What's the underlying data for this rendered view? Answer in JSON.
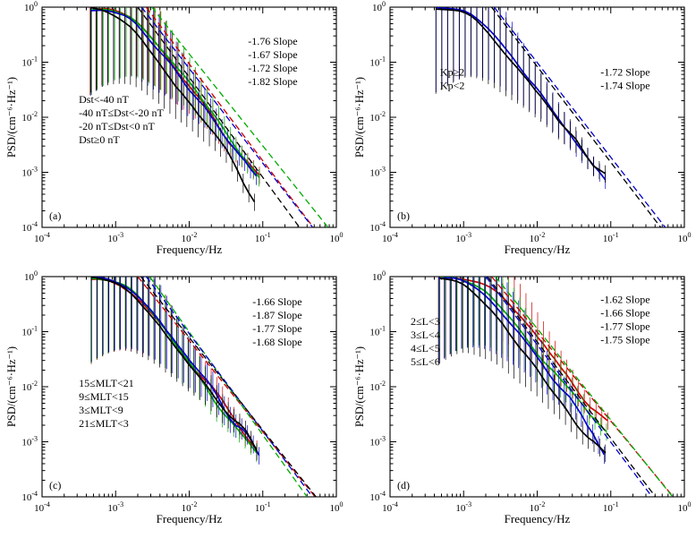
{
  "figure": {
    "background": "#ffffff",
    "axis_color": "#000000",
    "xlabel": "Frequency/Hz",
    "ylabel": "PSD/(cm⁻⁶·Hz⁻¹)"
  },
  "chart_data": [
    {
      "type": "line",
      "panel": "(a)",
      "xlabel": "Frequency/Hz",
      "ylabel": "PSD/(cm⁻⁶·Hz⁻¹)",
      "xlim": [
        0.0001,
        1
      ],
      "ylim": [
        0.0001,
        1
      ],
      "log_x": true,
      "log_y": true,
      "legend_pos": [
        0.125,
        0.435
      ],
      "slope_label_pos": [
        0.7,
        0.17
      ],
      "series": [
        {
          "name": "Dst<-40 nT",
          "color": "#cc0000",
          "slope": -1.76,
          "slope_label": "-1.76 Slope",
          "x_start": 0.00045,
          "x_break": 0.0016,
          "x_end": 0.09,
          "dash_x_top": 0.0026,
          "seed": 7
        },
        {
          "name": "-40 nT≤Dst<-20 nT",
          "color": "#00aa00",
          "slope": -1.67,
          "slope_label": "-1.67 Slope",
          "x_start": 0.00045,
          "x_break": 0.0015,
          "x_end": 0.085,
          "dash_x_top": 0.0031,
          "seed": 12
        },
        {
          "name": "-20 nT≤Dst<0 nT",
          "color": "#0000cc",
          "slope": -1.72,
          "slope_label": "-1.72 Slope",
          "x_start": 0.00045,
          "x_break": 0.0014,
          "x_end": 0.08,
          "dash_x_top": 0.00225,
          "seed": 23
        },
        {
          "name": "Dst≥0 nT",
          "color": "#000000",
          "slope": -1.82,
          "slope_label": "-1.82 Slope",
          "x_start": 0.00045,
          "x_break": 0.0011,
          "x_end": 0.075,
          "dash_x_top": 0.002,
          "seed": 31
        }
      ]
    },
    {
      "type": "line",
      "panel": "(b)",
      "xlabel": "Frequency/Hz",
      "ylabel": "PSD/(cm⁻⁶·Hz⁻¹)",
      "xlim": [
        0.0001,
        1
      ],
      "ylim": [
        0.0001,
        1
      ],
      "log_x": true,
      "log_y": true,
      "legend_pos": [
        0.17,
        0.31
      ],
      "slope_label_pos": [
        0.715,
        0.31
      ],
      "series": [
        {
          "name": "Kp≥2",
          "color": "#0000cc",
          "slope": -1.72,
          "slope_label": "-1.72 Slope",
          "x_start": 0.0004,
          "x_break": 0.0014,
          "x_end": 0.08,
          "dash_x_top": 0.0026,
          "seed": 41
        },
        {
          "name": "Kp<2",
          "color": "#000000",
          "slope": -1.74,
          "slope_label": "-1.74 Slope",
          "x_start": 0.0004,
          "x_break": 0.0013,
          "x_end": 0.08,
          "dash_x_top": 0.0024,
          "seed": 47
        }
      ]
    },
    {
      "type": "line",
      "panel": "(c)",
      "xlabel": "Frequency/Hz",
      "ylabel": "PSD/(cm⁻⁶·Hz⁻¹)",
      "xlim": [
        0.0001,
        1
      ],
      "ylim": [
        0.0001,
        1
      ],
      "log_x": true,
      "log_y": true,
      "legend_pos": [
        0.125,
        0.5
      ],
      "slope_label_pos": [
        0.715,
        0.13
      ],
      "series": [
        {
          "name": "15≤MLT<21",
          "color": "#cc0000",
          "slope": -1.66,
          "slope_label": "-1.66 Slope",
          "x_start": 0.00045,
          "x_break": 0.0012,
          "x_end": 0.08,
          "dash_x_top": 0.002,
          "seed": 53
        },
        {
          "name": "9≤MLT<15",
          "color": "#00aa00",
          "slope": -1.87,
          "slope_label": "-1.87 Slope",
          "x_start": 0.00045,
          "x_break": 0.0015,
          "x_end": 0.08,
          "dash_x_top": 0.0029,
          "seed": 59
        },
        {
          "name": "3≤MLT<9",
          "color": "#0000cc",
          "slope": -1.77,
          "slope_label": "-1.77 Slope",
          "x_start": 0.00045,
          "x_break": 0.0014,
          "x_end": 0.085,
          "dash_x_top": 0.0026,
          "seed": 61
        },
        {
          "name": "21≤MLT<3",
          "color": "#000000",
          "slope": -1.68,
          "slope_label": "-1.68 Slope",
          "x_start": 0.00045,
          "x_break": 0.0012,
          "x_end": 0.08,
          "dash_x_top": 0.0022,
          "seed": 67
        }
      ]
    },
    {
      "type": "line",
      "panel": "(d)",
      "xlabel": "Frequency/Hz",
      "ylabel": "PSD/(cm⁻⁶·Hz⁻¹)",
      "xlim": [
        0.0001,
        1
      ],
      "ylim": [
        0.0001,
        1
      ],
      "log_x": true,
      "log_y": true,
      "legend_pos": [
        0.07,
        0.22
      ],
      "slope_label_pos": [
        0.715,
        0.12
      ],
      "series": [
        {
          "name": "2≤L<3",
          "color": "#cc0000",
          "slope": -1.62,
          "slope_label": "-1.62 Slope",
          "x_start": 0.00045,
          "x_break": 0.0021,
          "x_end": 0.09,
          "dash_x_top": 0.0024,
          "seed": 71
        },
        {
          "name": "3≤L<4",
          "color": "#00aa00",
          "slope": -1.66,
          "slope_label": "-1.66 Slope",
          "x_start": 0.00045,
          "x_break": 0.0016,
          "x_end": 0.085,
          "dash_x_top": 0.0027,
          "seed": 73
        },
        {
          "name": "4≤L<5",
          "color": "#0000cc",
          "slope": -1.77,
          "slope_label": "-1.77 Slope",
          "x_start": 0.00045,
          "x_break": 0.0015,
          "x_end": 0.08,
          "dash_x_top": 0.002,
          "seed": 79
        },
        {
          "name": "5≤L<6",
          "color": "#000000",
          "slope": -1.75,
          "slope_label": "-1.75 Slope",
          "x_start": 0.00045,
          "x_break": 0.0011,
          "x_end": 0.08,
          "dash_x_top": 0.0021,
          "seed": 83
        }
      ]
    }
  ]
}
